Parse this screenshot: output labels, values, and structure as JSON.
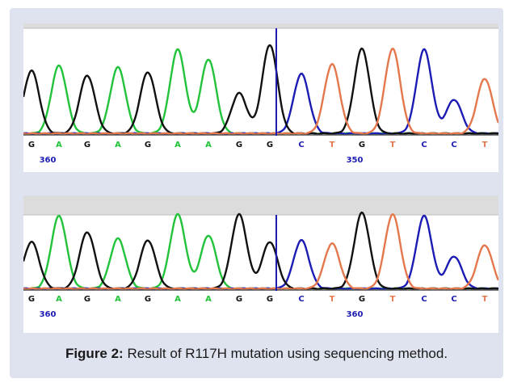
{
  "caption": {
    "label": "Figure 2:",
    "text": " Result of R117H mutation using sequencing method."
  },
  "colors": {
    "A": "#22c33a",
    "G": "#111111",
    "C": "#1c1cb4",
    "T": "#e4784c",
    "frame_bg": "#dfe3ef",
    "header_bar": "#dcdcdc"
  },
  "panels": [
    {
      "name": "top",
      "bases": [
        "G",
        "A",
        "G",
        "A",
        "G",
        "A",
        "A",
        "G",
        "G",
        "C",
        "T",
        "G",
        "T",
        "C",
        "C",
        "T"
      ],
      "positions": [
        "360",
        "350"
      ]
    },
    {
      "name": "bottom",
      "bases": [
        "G",
        "A",
        "G",
        "A",
        "G",
        "A",
        "A",
        "G",
        "G",
        "C",
        "T",
        "G",
        "T",
        "C",
        "C",
        "T"
      ],
      "positions": [
        "360",
        "360"
      ]
    }
  ]
}
